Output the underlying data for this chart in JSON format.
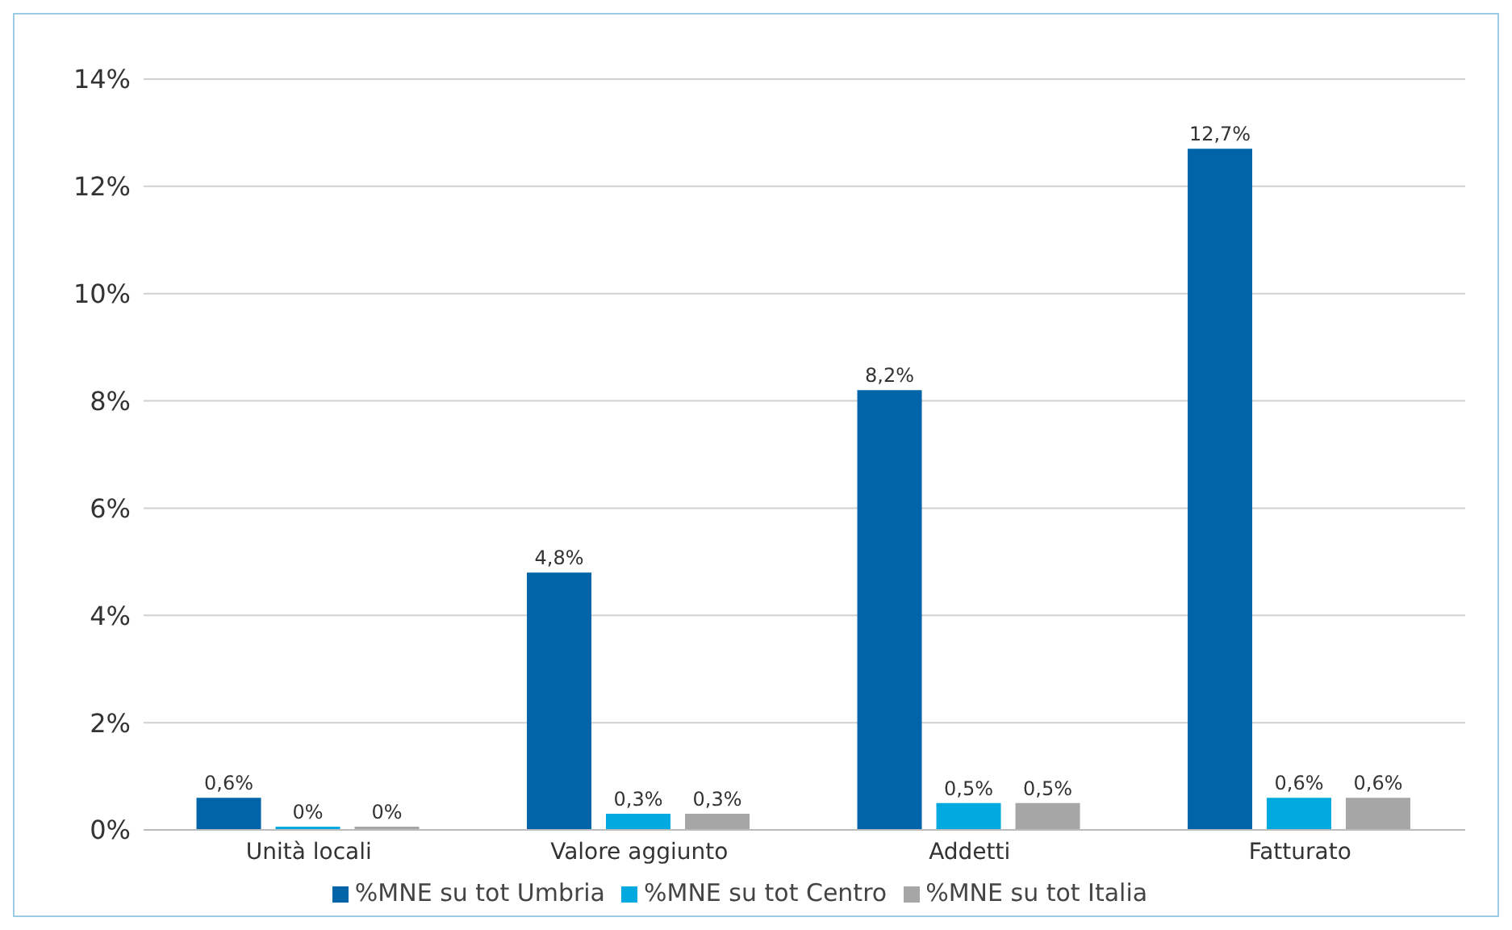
{
  "chart_data": {
    "type": "bar",
    "categories": [
      "Unità locali",
      "Valore aggiunto",
      "Addetti",
      "Fatturato"
    ],
    "series": [
      {
        "name": "%MNE su tot Umbria",
        "color": "#0064a8",
        "values": [
          0.6,
          4.8,
          8.2,
          12.7
        ],
        "value_labels": [
          "0,6%",
          "4,8%",
          "8,2%",
          "12,7%"
        ]
      },
      {
        "name": "%MNE su tot Centro",
        "color": "#00a9e0",
        "values": [
          0,
          0.3,
          0.5,
          0.6
        ],
        "value_labels": [
          "0%",
          "0,3%",
          "0,5%",
          "0,6%"
        ]
      },
      {
        "name": "%MNE su tot Italia",
        "color": "#a6a6a6",
        "values": [
          0,
          0.3,
          0.5,
          0.6
        ],
        "value_labels": [
          "0%",
          "0,3%",
          "0,5%",
          "0,6%"
        ]
      }
    ],
    "ylim": [
      0,
      14
    ],
    "yticks": [
      {
        "value": 0,
        "label": "0%"
      },
      {
        "value": 2,
        "label": "2%"
      },
      {
        "value": 4,
        "label": "4%"
      },
      {
        "value": 6,
        "label": "6%"
      },
      {
        "value": 8,
        "label": "8%"
      },
      {
        "value": 10,
        "label": "10%"
      },
      {
        "value": 12,
        "label": "12%"
      },
      {
        "value": 14,
        "label": "14%"
      }
    ],
    "grid": "y",
    "legend": "bottom"
  }
}
